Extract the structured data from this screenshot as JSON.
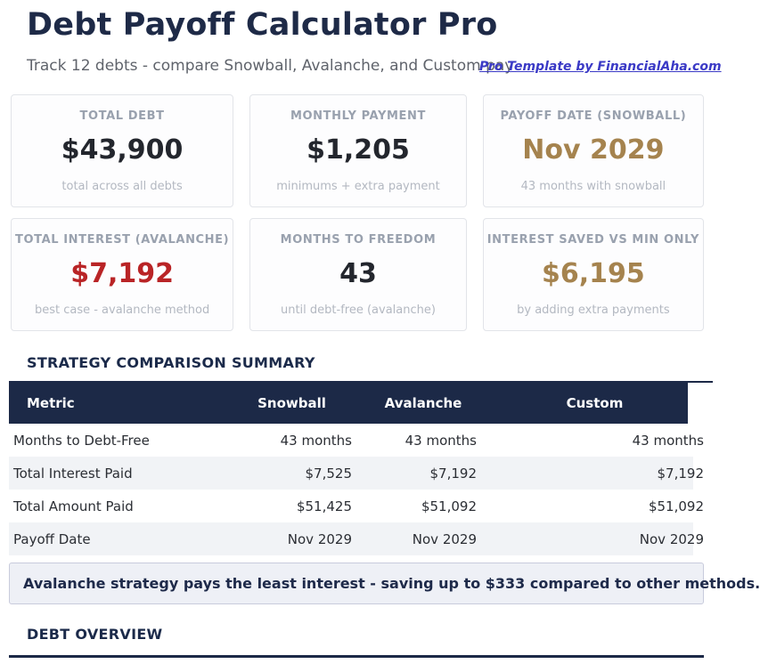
{
  "page": {
    "title": "Debt Payoff Calculator Pro",
    "subtitle": "Track 12 debts - compare Snowball, Avalanche, and Custom pay",
    "link_label": "Pro Template by FinancialAha.com"
  },
  "summary_cards": [
    {
      "label": "TOTAL DEBT",
      "value": "$43,900",
      "note": "total across all debts",
      "value_color": "#23262d"
    },
    {
      "label": "MONTHLY PAYMENT",
      "value": "$1,205",
      "note": "minimums + extra payment",
      "value_color": "#23262d"
    },
    {
      "label": "PAYOFF DATE (SNOWBALL)",
      "value": "Nov 2029",
      "note": "43 months with snowball",
      "value_color": "#a5834e"
    },
    {
      "label": "TOTAL INTEREST (AVALANCHE)",
      "value": "$7,192",
      "note": "best case - avalanche method",
      "value_color": "#b92426"
    },
    {
      "label": "MONTHS TO FREEDOM",
      "value": "43",
      "note": "until debt-free (avalanche)",
      "value_color": "#23262d"
    },
    {
      "label": "INTEREST SAVED VS MIN ONLY",
      "value": "$6,195",
      "note": "by adding extra payments",
      "value_color": "#a5834e"
    }
  ],
  "comparison": {
    "heading": "STRATEGY COMPARISON SUMMARY",
    "columns": [
      "Metric",
      "Snowball",
      "Avalanche",
      "Custom"
    ],
    "rows": [
      [
        "Months to Debt-Free",
        "43 months",
        "43 months",
        "43 months"
      ],
      [
        "Total Interest Paid",
        "$7,525",
        "$7,192",
        "$7,192"
      ],
      [
        "Total Amount Paid",
        "$51,425",
        "$51,092",
        "$51,092"
      ],
      [
        "Payoff Date",
        "Nov 2029",
        "Nov 2029",
        "Nov 2029"
      ]
    ]
  },
  "callout": {
    "text": "Avalanche strategy pays the least interest - saving up to $333 compared to other methods."
  },
  "overview": {
    "heading": "DEBT OVERVIEW"
  },
  "colors": {
    "navy": "#1c2947",
    "title_navy": "#1e2a47",
    "gold": "#a5834e",
    "red": "#b92426",
    "dark_value": "#23262d",
    "link_blue": "#3b3ac6",
    "stripe": "#f1f3f6",
    "callout_bg": "#eef0f6",
    "callout_border": "#c8cbdc",
    "card_border": "#e2e4e9",
    "card_label_gray": "#99a1ae",
    "card_note_gray": "#b3b8c1",
    "subtitle_gray": "#5f636b"
  }
}
